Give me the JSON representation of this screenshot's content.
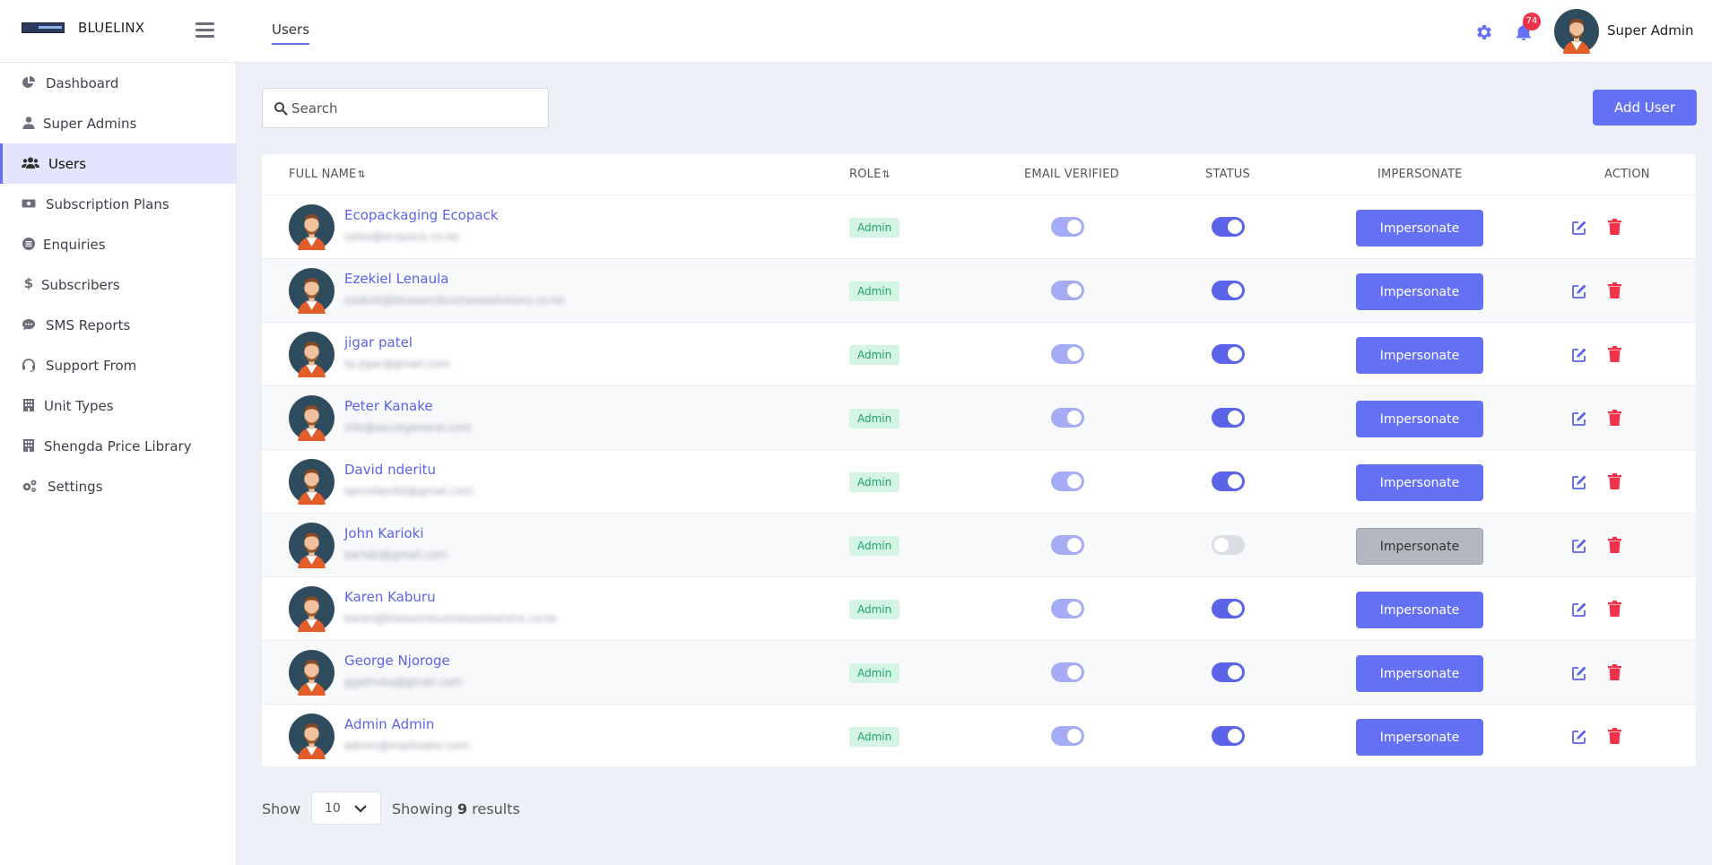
{
  "brand": {
    "name": "BLUELINX"
  },
  "header": {
    "tab": "Users",
    "notification_count": "74",
    "user_name": "Super Admin"
  },
  "sidebar": {
    "items": [
      {
        "label": "Dashboard",
        "icon": "pie-chart-icon"
      },
      {
        "label": "Super Admins",
        "icon": "user-icon"
      },
      {
        "label": "Users",
        "icon": "users-icon",
        "active": true
      },
      {
        "label": "Subscription Plans",
        "icon": "money-bill-icon"
      },
      {
        "label": "Enquiries",
        "icon": "list-circle-icon"
      },
      {
        "label": "Subscribers",
        "icon": "dollar-icon"
      },
      {
        "label": "SMS Reports",
        "icon": "chat-icon"
      },
      {
        "label": "Support From",
        "icon": "headset-icon"
      },
      {
        "label": "Unit Types",
        "icon": "building-icon"
      },
      {
        "label": "Shengda Price Library",
        "icon": "building-icon"
      },
      {
        "label": "Settings",
        "icon": "gears-icon"
      }
    ]
  },
  "search": {
    "placeholder": "Search"
  },
  "add_user_label": "Add User",
  "table": {
    "columns": {
      "full_name": "FULL NAME",
      "role": "ROLE",
      "email_verified": "EMAIL VERIFIED",
      "status": "STATUS",
      "impersonate": "IMPERSONATE",
      "action": "ACTION"
    },
    "rows": [
      {
        "name": "Ecopackaging Ecopack",
        "email": "sales@ecopack.co.ke",
        "role": "Admin",
        "email_verified": true,
        "status": true,
        "impersonate_label": "Impersonate"
      },
      {
        "name": "Ezekiel Lenaula",
        "email": "ezekiel@blossombusinesssolutions.co.ke",
        "role": "Admin",
        "email_verified": true,
        "status": true,
        "impersonate_label": "Impersonate"
      },
      {
        "name": "jigar patel",
        "email": "tp.jigar@gmail.com",
        "role": "Admin",
        "email_verified": true,
        "status": true,
        "impersonate_label": "Impersonate"
      },
      {
        "name": "Peter Kanake",
        "email": "info@ascotgeneral.com",
        "role": "Admin",
        "email_verified": true,
        "status": true,
        "impersonate_label": "Impersonate"
      },
      {
        "name": "David nderitu",
        "email": "sprinklesltd@gmail.com",
        "role": "Admin",
        "email_verified": true,
        "status": true,
        "impersonate_label": "Impersonate"
      },
      {
        "name": "John Karioki",
        "email": "karioki@gmail.com",
        "role": "Admin",
        "email_verified": true,
        "status": false,
        "impersonate_label": "Impersonate"
      },
      {
        "name": "Karen Kaburu",
        "email": "karen@blossombusinesssolutions.co.ke",
        "role": "Admin",
        "email_verified": true,
        "status": true,
        "impersonate_label": "Impersonate"
      },
      {
        "name": "George Njoroge",
        "email": "ggathuka@gmail.com",
        "role": "Admin",
        "email_verified": true,
        "status": true,
        "impersonate_label": "Impersonate"
      },
      {
        "name": "Admin Admin",
        "email": "admin@mailinator.com",
        "role": "Admin",
        "email_verified": true,
        "status": true,
        "impersonate_label": "Impersonate"
      }
    ]
  },
  "footer": {
    "show_label": "Show",
    "per_page": "10",
    "showing_prefix": "Showing",
    "result_count": "9",
    "showing_suffix": "results"
  },
  "colors": {
    "accent": "#6571f5",
    "link": "#5b63e8",
    "danger": "#f0324a",
    "role_badge_bg": "#d4f5e4",
    "role_badge_text": "#1ea36a"
  }
}
